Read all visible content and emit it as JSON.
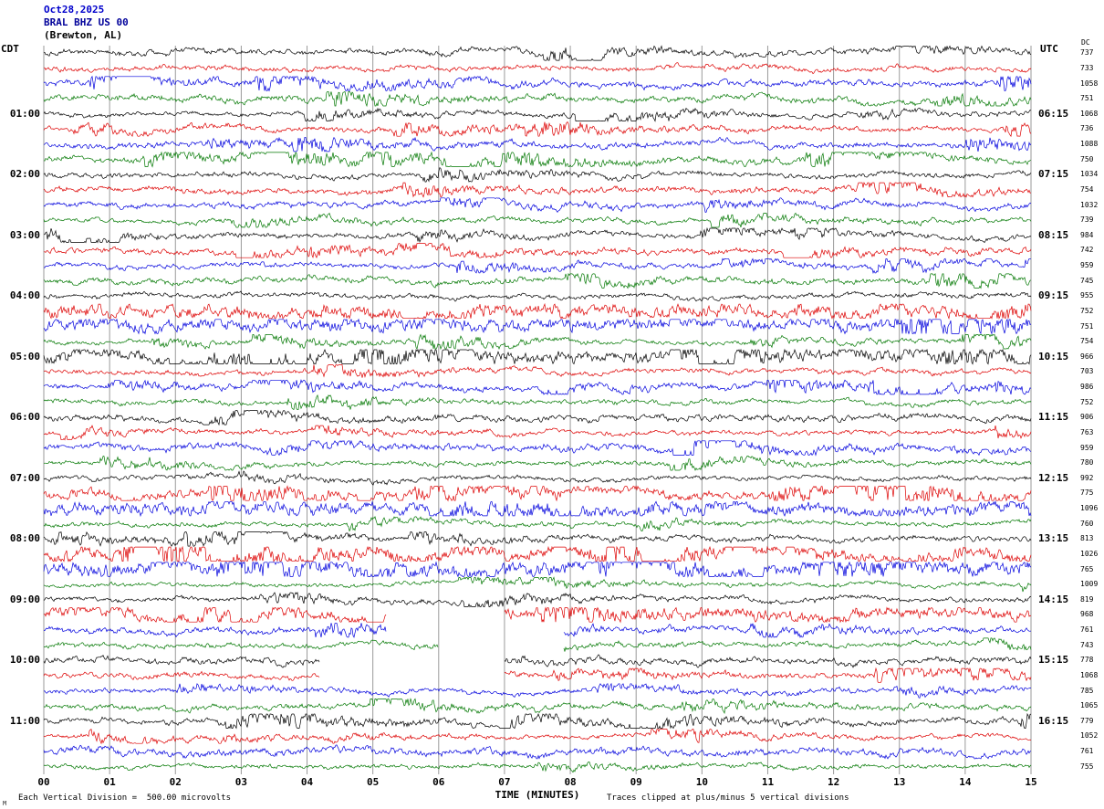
{
  "chart_data": {
    "type": "helicorder",
    "title": {
      "date": "Oct28,2025",
      "station": "BRAL BHZ US 00",
      "location": "(Brewton, AL)"
    },
    "left_axis": {
      "header": "CDT",
      "hour_rows": [
        4,
        8,
        12,
        16,
        20,
        24,
        28,
        32,
        36,
        40,
        44
      ],
      "hour_labels": [
        "01:00",
        "02:00",
        "03:00",
        "04:00",
        "05:00",
        "06:00",
        "07:00",
        "08:00",
        "09:00",
        "10:00",
        "11:00"
      ]
    },
    "right_axis": {
      "header": "UTC",
      "dc_header": "DC",
      "hour_rows": [
        4,
        8,
        12,
        16,
        20,
        24,
        28,
        32,
        36,
        40,
        44
      ],
      "hour_labels": [
        "06:15",
        "07:15",
        "08:15",
        "09:15",
        "10:15",
        "11:15",
        "12:15",
        "13:15",
        "14:15",
        "15:15",
        "16:15"
      ],
      "dc_values": [
        737,
        733,
        1058,
        751,
        1068,
        736,
        1088,
        750,
        1034,
        754,
        1032,
        739,
        984,
        742,
        959,
        745,
        955,
        752,
        751,
        754,
        966,
        703,
        986,
        752,
        906,
        763,
        959,
        780,
        992,
        775,
        1096,
        760,
        813,
        1026,
        765,
        1009,
        819,
        968,
        761,
        743,
        778,
        1068,
        785,
        1065,
        779,
        1052,
        761,
        755
      ]
    },
    "x_axis": {
      "label": "TIME (MINUTES)",
      "tick_labels": [
        "00",
        "01",
        "02",
        "03",
        "04",
        "05",
        "06",
        "07",
        "08",
        "09",
        "10",
        "11",
        "12",
        "13",
        "14",
        "15"
      ],
      "minutes_per_row": 15
    },
    "num_rows": 48,
    "trace_colors": [
      "#000000",
      "#dd0000",
      "#0000dd",
      "#007700"
    ],
    "clip_divisions": 5,
    "division_microvolts": "500.00",
    "heavy_rows": [
      17,
      18,
      20,
      29,
      30,
      33,
      34,
      37
    ],
    "gaps": [
      {
        "row": 37,
        "start_min": 5.2,
        "end_min": 7.0
      },
      {
        "row": 38,
        "start_min": 5.2,
        "end_min": 7.9
      },
      {
        "row": 39,
        "start_min": 6.0,
        "end_min": 7.9
      },
      {
        "row": 40,
        "start_min": 4.2,
        "end_min": 7.0
      },
      {
        "row": 41,
        "start_min": 4.2,
        "end_min": 7.0
      }
    ],
    "seed": 20251028,
    "footer": {
      "left": "Each Vertical Division =  500.00 microvolts",
      "right": "Traces clipped at plus/minus 5 vertical divisions"
    },
    "corner_mark": "M"
  }
}
